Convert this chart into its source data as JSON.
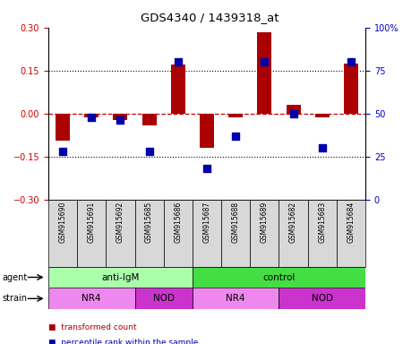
{
  "title": "GDS4340 / 1439318_at",
  "samples": [
    "GSM915690",
    "GSM915691",
    "GSM915692",
    "GSM915685",
    "GSM915686",
    "GSM915687",
    "GSM915688",
    "GSM915689",
    "GSM915682",
    "GSM915683",
    "GSM915684"
  ],
  "red_values": [
    -0.095,
    -0.012,
    -0.022,
    -0.04,
    0.17,
    -0.12,
    -0.012,
    0.285,
    0.03,
    -0.012,
    0.175
  ],
  "blue_values_pct": [
    28,
    48,
    46,
    28,
    80,
    18,
    37,
    80,
    50,
    30,
    80
  ],
  "ylim_left": [
    -0.3,
    0.3
  ],
  "ylim_right": [
    0,
    100
  ],
  "yticks_left": [
    -0.3,
    -0.15,
    0.0,
    0.15,
    0.3
  ],
  "yticks_right": [
    0,
    25,
    50,
    75,
    100
  ],
  "hlines_dotted": [
    -0.15,
    0.15
  ],
  "hline_dashed": 0.0,
  "agent_groups": [
    {
      "label": "anti-IgM",
      "start": 0,
      "end": 5,
      "color": "#aaffaa"
    },
    {
      "label": "control",
      "start": 5,
      "end": 11,
      "color": "#44dd44"
    }
  ],
  "strain_groups": [
    {
      "label": "NR4",
      "start": 0,
      "end": 3,
      "color": "#ee88ee"
    },
    {
      "label": "NOD",
      "start": 3,
      "end": 5,
      "color": "#cc33cc"
    },
    {
      "label": "NR4",
      "start": 5,
      "end": 8,
      "color": "#ee88ee"
    },
    {
      "label": "NOD",
      "start": 8,
      "end": 11,
      "color": "#cc33cc"
    }
  ],
  "bar_color": "#aa0000",
  "dot_color": "#0000aa",
  "bar_width": 0.5,
  "dot_size": 30,
  "tick_color_left": "#cc0000",
  "tick_color_right": "#0000cc",
  "zero_line_color": "#cc0000",
  "dotted_line_color": "black",
  "sample_box_color": "#d8d8d8",
  "bg_color": "#ffffff"
}
